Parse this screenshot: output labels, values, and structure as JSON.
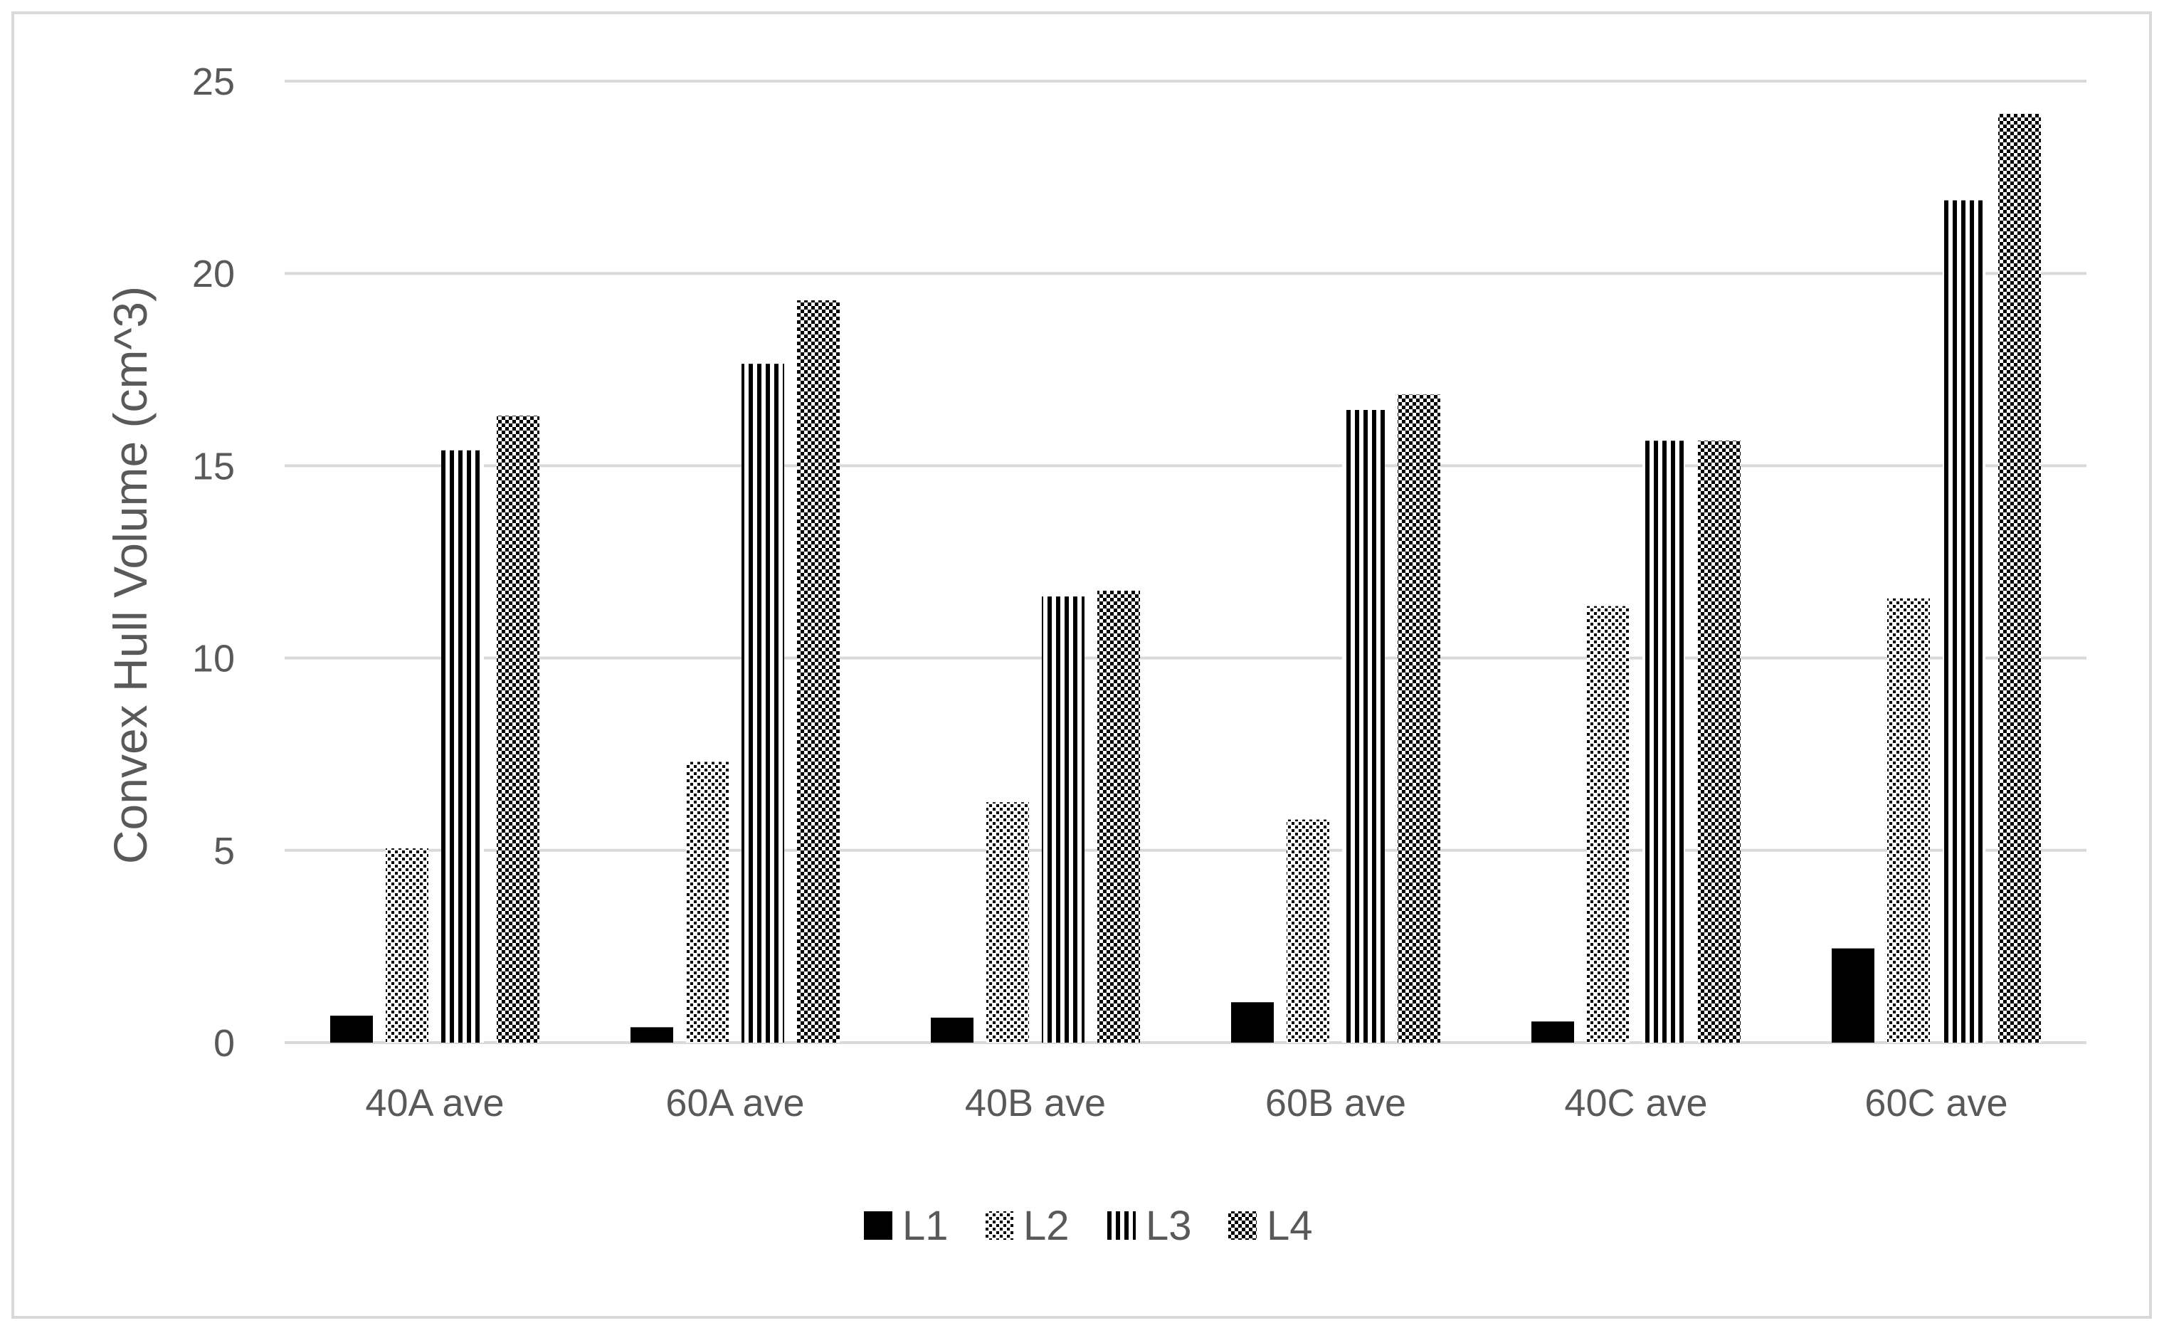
{
  "chart_data": {
    "type": "bar",
    "title": "",
    "xlabel": "",
    "ylabel": "Convex Hull Volume (cm^3)",
    "ylim": [
      0,
      25
    ],
    "yticks": [
      0,
      5,
      10,
      15,
      20,
      25
    ],
    "grid": true,
    "legend_position": "bottom",
    "categories": [
      "40A ave",
      "60A ave",
      "40B ave",
      "60B ave",
      "40C ave",
      "60C ave"
    ],
    "series": [
      {
        "name": "L1",
        "pattern": "solid",
        "color": "#000000",
        "values": [
          0.7,
          0.4,
          0.65,
          1.05,
          0.55,
          2.45
        ]
      },
      {
        "name": "L2",
        "pattern": "dots",
        "color": "#000000",
        "values": [
          5.05,
          7.3,
          6.25,
          5.8,
          11.35,
          11.55
        ]
      },
      {
        "name": "L3",
        "pattern": "vertical-stripes",
        "color": "#000000",
        "values": [
          15.4,
          17.65,
          11.6,
          16.45,
          15.65,
          21.9
        ]
      },
      {
        "name": "L4",
        "pattern": "checker",
        "color": "#000000",
        "values": [
          16.3,
          19.3,
          11.75,
          16.85,
          15.65,
          24.15
        ]
      }
    ],
    "colors": {
      "gridline": "#d9d9d9",
      "axis_text": "#595959",
      "frame": "#d9d9d9"
    }
  }
}
